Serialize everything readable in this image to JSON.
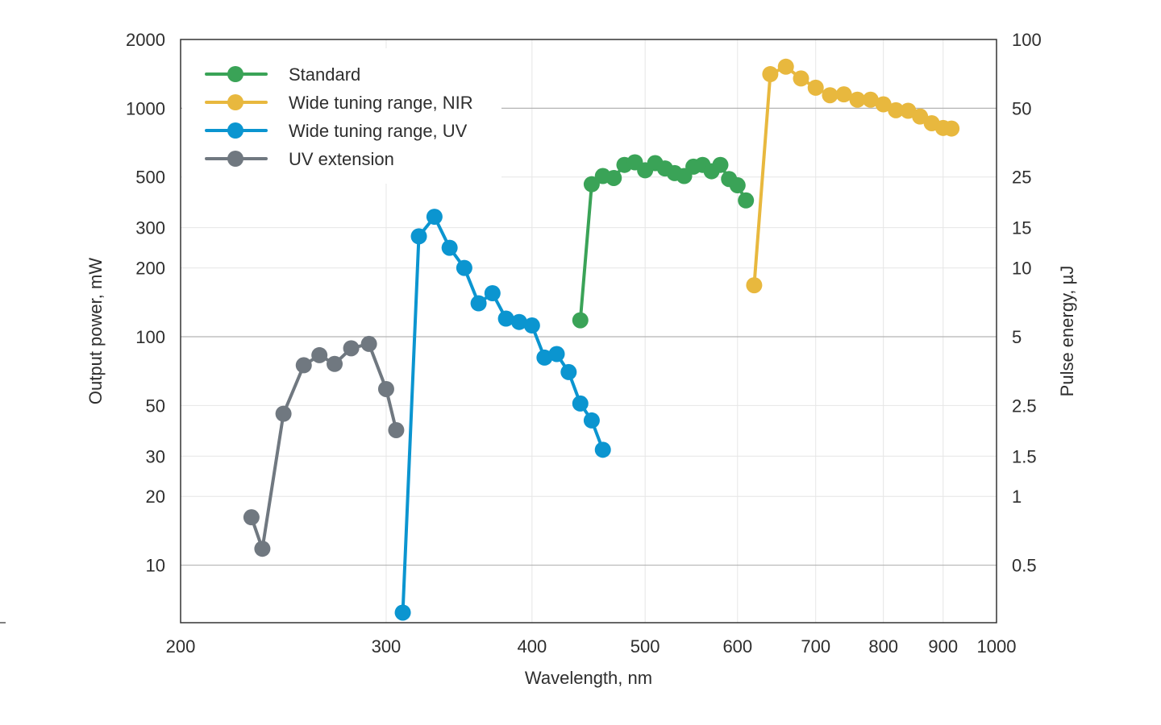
{
  "chart_data": {
    "type": "line",
    "xlabel": "Wavelength, nm",
    "ylabel": "Output power, mW",
    "y2label": "Pulse energy, µJ",
    "x_scale": "log",
    "y_scale": "log",
    "xlim": [
      200,
      1000
    ],
    "ylim": [
      5.6,
      2000
    ],
    "x_ticks": [
      200,
      300,
      400,
      500,
      600,
      700,
      800,
      900,
      1000
    ],
    "x_tick_labels": [
      "200",
      "300",
      "400",
      "500",
      "600",
      "700",
      "800",
      "900",
      "1000"
    ],
    "y_ticks": [
      2000,
      1000,
      500,
      300,
      200,
      100,
      50,
      30,
      20,
      10
    ],
    "y_tick_labels": [
      "2000",
      "1000",
      "500",
      "300",
      "200",
      "100",
      "50",
      "30",
      "20",
      "10"
    ],
    "y2_ticks": [
      2000,
      1000,
      500,
      300,
      200,
      100,
      50,
      30,
      20,
      10
    ],
    "y2_tick_labels": [
      "100",
      "50",
      "25",
      "15",
      "10",
      "5",
      "2.5",
      "1.5",
      "1",
      "0.5"
    ],
    "major_grid_y": [
      1000,
      100,
      10
    ],
    "minor_grid_y": [
      500,
      300,
      200,
      50,
      30,
      20
    ],
    "grid_x": [
      300,
      400,
      500,
      600,
      700,
      800,
      900
    ],
    "grid": true,
    "legend_position": "top-left",
    "series": [
      {
        "name": "Standard",
        "color": "#3aa357",
        "x": [
          440,
          450,
          460,
          470,
          480,
          490,
          500,
          510,
          520,
          530,
          540,
          550,
          560,
          570,
          580,
          590,
          600,
          610
        ],
        "y": [
          118,
          465,
          505,
          495,
          565,
          580,
          535,
          575,
          545,
          520,
          505,
          555,
          565,
          530,
          565,
          490,
          460,
          395
        ]
      },
      {
        "name": "Wide tuning range, NIR",
        "color": "#e8b83e",
        "x": [
          620,
          640,
          660,
          680,
          700,
          720,
          740,
          760,
          780,
          800,
          820,
          840,
          860,
          880,
          900,
          915
        ],
        "y": [
          168,
          1410,
          1520,
          1350,
          1230,
          1140,
          1150,
          1090,
          1090,
          1040,
          980,
          975,
          920,
          860,
          820,
          815
        ]
      },
      {
        "name": "Wide tuning range, UV",
        "color": "#0b95d0",
        "x": [
          310,
          320,
          330,
          340,
          350,
          360,
          370,
          380,
          390,
          400,
          410,
          420,
          430,
          440,
          450,
          460
        ],
        "y": [
          6.2,
          275,
          335,
          245,
          200,
          140,
          155,
          120,
          116,
          112,
          81,
          84,
          70,
          51,
          43,
          32
        ]
      },
      {
        "name": "UV extension",
        "color": "#707880",
        "x": [
          230,
          235,
          245,
          255,
          263,
          271,
          280,
          290,
          300,
          306
        ],
        "y": [
          16.2,
          11.8,
          46,
          75,
          83,
          76,
          89,
          93,
          59,
          39
        ]
      }
    ]
  }
}
